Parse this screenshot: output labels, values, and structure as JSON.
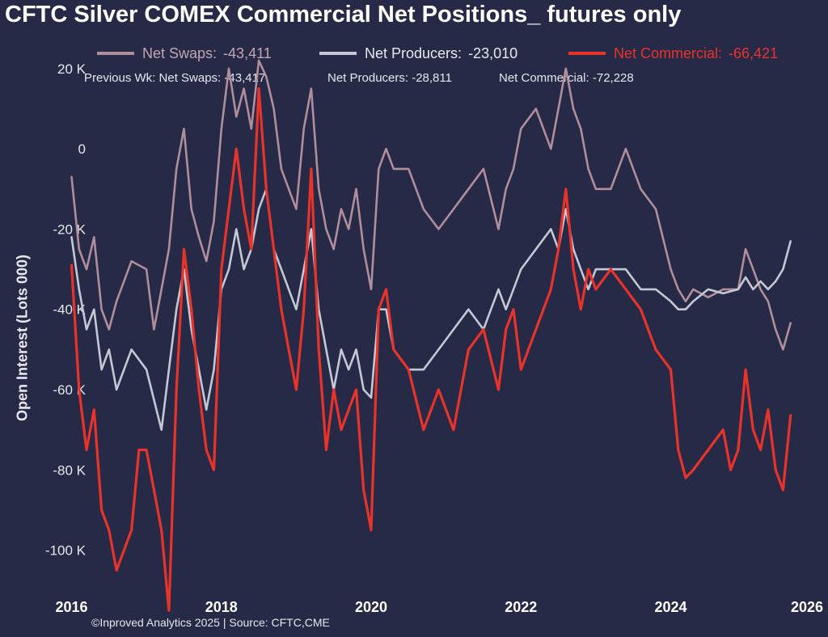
{
  "chart_data": {
    "type": "line",
    "title": "CFTC Silver COMEX Commercial Net Positions_ futures only",
    "ylabel": "Open Interest (Lots 000)",
    "xlabel": "",
    "footer": "©Inproved Analytics 2025 | Source: CFTC,CME",
    "ylim": [
      -117000,
      25000
    ],
    "xlim": [
      2015.8,
      2026.1
    ],
    "y_ticks": [
      20000,
      0,
      -20000,
      -40000,
      -60000,
      -80000,
      -100000
    ],
    "y_tick_labels": [
      "20 K",
      "0",
      "-20 K",
      "-40 K",
      "-60 K",
      "-80 K",
      "-100 K"
    ],
    "x_ticks": [
      2016,
      2018,
      2020,
      2022,
      2024,
      2026
    ],
    "x_tick_labels": [
      "2016",
      "2018",
      "2020",
      "2022",
      "2024",
      "2026"
    ],
    "grid": false,
    "legend_position": "top",
    "legend": [
      {
        "label": "Net Swaps:",
        "value": "-43,411",
        "color": "#b08e9c"
      },
      {
        "label": "Net Producers:",
        "value": "-23,010",
        "color": "#c5c8d4"
      },
      {
        "label": "Net Commercial:",
        "value": "-66,421",
        "color": "#e8332a"
      }
    ],
    "previous_week": {
      "net_swaps": "Previous Wk: Net Swaps: -43,417",
      "net_producers": "Net Producers: -28,811",
      "net_commercial": "Net Commercial: -72,228"
    },
    "series": [
      {
        "name": "Net Swaps",
        "color": "#b08e9c",
        "x": [
          2016.0,
          2016.1,
          2016.2,
          2016.3,
          2016.4,
          2016.5,
          2016.6,
          2016.8,
          2017.0,
          2017.1,
          2017.2,
          2017.3,
          2017.4,
          2017.5,
          2017.6,
          2017.7,
          2017.8,
          2017.9,
          2018.0,
          2018.1,
          2018.2,
          2018.3,
          2018.4,
          2018.5,
          2018.6,
          2018.7,
          2018.8,
          2018.9,
          2019.0,
          2019.1,
          2019.2,
          2019.3,
          2019.4,
          2019.5,
          2019.6,
          2019.7,
          2019.8,
          2019.9,
          2020.0,
          2020.1,
          2020.2,
          2020.3,
          2020.5,
          2020.7,
          2020.9,
          2021.1,
          2021.3,
          2021.5,
          2021.7,
          2021.8,
          2021.9,
          2022.0,
          2022.2,
          2022.4,
          2022.5,
          2022.6,
          2022.7,
          2022.8,
          2022.9,
          2023.0,
          2023.2,
          2023.4,
          2023.6,
          2023.8,
          2024.0,
          2024.1,
          2024.2,
          2024.3,
          2024.5,
          2024.7,
          2024.9,
          2025.0,
          2025.1,
          2025.2,
          2025.3,
          2025.4,
          2025.5,
          2025.6
        ],
        "y": [
          -7000,
          -25000,
          -30000,
          -22000,
          -40000,
          -45000,
          -38000,
          -28000,
          -30000,
          -45000,
          -35000,
          -25000,
          -5000,
          5000,
          -15000,
          -22000,
          -28000,
          -18000,
          5000,
          20000,
          8000,
          15000,
          5000,
          22000,
          18000,
          10000,
          -5000,
          -10000,
          -15000,
          5000,
          15000,
          -10000,
          -20000,
          -25000,
          -15000,
          -20000,
          -10000,
          -25000,
          -35000,
          -5000,
          0,
          -5000,
          -5000,
          -15000,
          -20000,
          -15000,
          -10000,
          -5000,
          -20000,
          -10000,
          -5000,
          5000,
          10000,
          0,
          10000,
          20000,
          10000,
          5000,
          -5000,
          -10000,
          -10000,
          0,
          -10000,
          -15000,
          -30000,
          -35000,
          -38000,
          -35000,
          -37000,
          -35000,
          -35000,
          -25000,
          -30000,
          -35000,
          -38000,
          -45000,
          -50000,
          -43411
        ]
      },
      {
        "name": "Net Producers",
        "color": "#c5c8d4",
        "x": [
          2016.0,
          2016.1,
          2016.2,
          2016.3,
          2016.4,
          2016.5,
          2016.6,
          2016.8,
          2017.0,
          2017.2,
          2017.3,
          2017.4,
          2017.5,
          2017.6,
          2017.7,
          2017.8,
          2017.9,
          2018.0,
          2018.1,
          2018.2,
          2018.3,
          2018.4,
          2018.5,
          2018.6,
          2018.7,
          2018.8,
          2018.9,
          2019.0,
          2019.1,
          2019.2,
          2019.3,
          2019.4,
          2019.5,
          2019.6,
          2019.7,
          2019.8,
          2019.9,
          2020.0,
          2020.1,
          2020.2,
          2020.3,
          2020.5,
          2020.7,
          2020.9,
          2021.1,
          2021.3,
          2021.5,
          2021.7,
          2021.8,
          2021.9,
          2022.0,
          2022.2,
          2022.4,
          2022.5,
          2022.6,
          2022.7,
          2022.8,
          2022.9,
          2023.0,
          2023.2,
          2023.4,
          2023.6,
          2023.8,
          2024.0,
          2024.1,
          2024.2,
          2024.3,
          2024.5,
          2024.7,
          2024.9,
          2025.0,
          2025.1,
          2025.2,
          2025.3,
          2025.4,
          2025.5,
          2025.6
        ],
        "y": [
          -22000,
          -35000,
          -45000,
          -40000,
          -55000,
          -50000,
          -60000,
          -50000,
          -55000,
          -70000,
          -55000,
          -40000,
          -30000,
          -45000,
          -55000,
          -65000,
          -55000,
          -35000,
          -30000,
          -20000,
          -30000,
          -25000,
          -15000,
          -10000,
          -25000,
          -30000,
          -35000,
          -40000,
          -30000,
          -20000,
          -40000,
          -50000,
          -60000,
          -50000,
          -55000,
          -50000,
          -60000,
          -62000,
          -40000,
          -40000,
          -50000,
          -55000,
          -55000,
          -50000,
          -45000,
          -40000,
          -45000,
          -35000,
          -40000,
          -35000,
          -30000,
          -25000,
          -20000,
          -25000,
          -15000,
          -25000,
          -30000,
          -35000,
          -30000,
          -30000,
          -30000,
          -35000,
          -35000,
          -38000,
          -40000,
          -40000,
          -38000,
          -35000,
          -36000,
          -35000,
          -32000,
          -35000,
          -33000,
          -35000,
          -33000,
          -30000,
          -23010
        ]
      },
      {
        "name": "Net Commercial",
        "color": "#e8332a",
        "x": [
          2016.0,
          2016.1,
          2016.2,
          2016.3,
          2016.4,
          2016.5,
          2016.6,
          2016.7,
          2016.8,
          2016.9,
          2017.0,
          2017.1,
          2017.2,
          2017.3,
          2017.4,
          2017.5,
          2017.6,
          2017.7,
          2017.8,
          2017.9,
          2018.0,
          2018.1,
          2018.2,
          2018.3,
          2018.4,
          2018.5,
          2018.6,
          2018.7,
          2018.8,
          2018.9,
          2019.0,
          2019.1,
          2019.2,
          2019.3,
          2019.4,
          2019.5,
          2019.6,
          2019.7,
          2019.8,
          2019.9,
          2020.0,
          2020.1,
          2020.2,
          2020.3,
          2020.5,
          2020.7,
          2020.9,
          2021.1,
          2021.3,
          2021.5,
          2021.7,
          2021.8,
          2021.9,
          2022.0,
          2022.2,
          2022.4,
          2022.5,
          2022.6,
          2022.7,
          2022.8,
          2022.9,
          2023.0,
          2023.2,
          2023.4,
          2023.6,
          2023.8,
          2024.0,
          2024.1,
          2024.2,
          2024.3,
          2024.5,
          2024.7,
          2024.8,
          2024.9,
          2025.0,
          2025.1,
          2025.2,
          2025.3,
          2025.4,
          2025.5,
          2025.6
        ],
        "y": [
          -29000,
          -60000,
          -75000,
          -65000,
          -90000,
          -95000,
          -105000,
          -100000,
          -95000,
          -75000,
          -75000,
          -85000,
          -95000,
          -115000,
          -60000,
          -25000,
          -40000,
          -60000,
          -75000,
          -80000,
          -30000,
          -15000,
          0,
          -15000,
          -25000,
          15000,
          -10000,
          -25000,
          -40000,
          -50000,
          -60000,
          -40000,
          -5000,
          -50000,
          -75000,
          -60000,
          -70000,
          -65000,
          -60000,
          -85000,
          -95000,
          -40000,
          -35000,
          -50000,
          -55000,
          -70000,
          -60000,
          -70000,
          -50000,
          -45000,
          -60000,
          -45000,
          -40000,
          -55000,
          -45000,
          -35000,
          -25000,
          -10000,
          -30000,
          -40000,
          -30000,
          -35000,
          -30000,
          -35000,
          -40000,
          -50000,
          -55000,
          -75000,
          -82000,
          -80000,
          -75000,
          -70000,
          -80000,
          -75000,
          -55000,
          -70000,
          -75000,
          -65000,
          -80000,
          -85000,
          -66421
        ]
      }
    ]
  }
}
